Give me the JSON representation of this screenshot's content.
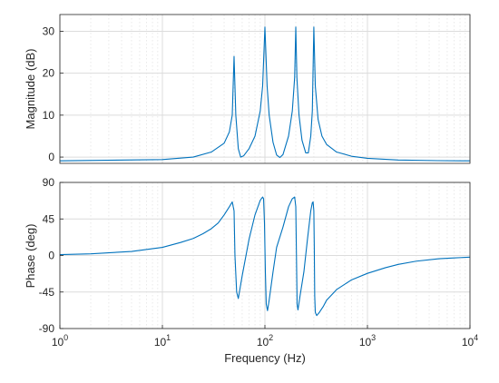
{
  "chart_data": [
    {
      "type": "line",
      "ylabel": "Magnitude (dB)",
      "xscale": "log",
      "xlim": [
        1,
        10000
      ],
      "ylim": [
        -1.5,
        34
      ],
      "yticks": [
        "0",
        "10",
        "20",
        "30"
      ],
      "ytick_values": [
        0,
        10,
        20,
        30
      ],
      "grid": true,
      "color": "#0072BD",
      "series": [
        {
          "x": [
            1,
            10,
            20,
            30,
            40,
            45,
            48,
            50,
            52,
            55,
            58,
            62,
            70,
            80,
            90,
            95,
            100,
            105,
            110,
            120,
            130,
            140,
            150,
            170,
            185,
            195,
            200,
            205,
            215,
            230,
            250,
            265,
            280,
            290,
            300,
            310,
            330,
            360,
            400,
            500,
            700,
            1000,
            2000,
            5000,
            10000
          ],
          "y": [
            -0.9,
            -0.6,
            0.0,
            1.2,
            3.3,
            6.0,
            10.0,
            24.0,
            10.0,
            2.0,
            0.0,
            0.3,
            2.0,
            5.0,
            11.0,
            17.0,
            31.0,
            17.0,
            10.0,
            3.5,
            0.5,
            -0.1,
            0.6,
            5.0,
            11.0,
            19.0,
            31.0,
            19.0,
            10.0,
            4.0,
            1.0,
            1.0,
            5.0,
            11.0,
            31.0,
            17.0,
            9.0,
            5.0,
            3.0,
            1.2,
            0.2,
            -0.3,
            -0.7,
            -0.85,
            -0.9
          ]
        }
      ]
    },
    {
      "type": "line",
      "xlabel": "Frequency  (Hz)",
      "ylabel": "Phase (deg)",
      "xscale": "log",
      "xlim": [
        1,
        10000
      ],
      "ylim": [
        -90,
        90
      ],
      "xticks": [
        {
          "base": "10",
          "exp": "0"
        },
        {
          "base": "10",
          "exp": "1"
        },
        {
          "base": "10",
          "exp": "2"
        },
        {
          "base": "10",
          "exp": "3"
        },
        {
          "base": "10",
          "exp": "4"
        }
      ],
      "xtick_values": [
        1,
        10,
        100,
        1000,
        10000
      ],
      "yticks": [
        "90",
        "45",
        "0",
        "-45",
        "-90"
      ],
      "ytick_values": [
        90,
        45,
        0,
        -45,
        -90
      ],
      "grid": true,
      "color": "#0072BD",
      "series": [
        {
          "x": [
            1,
            2,
            5,
            10,
            15,
            20,
            25,
            30,
            35,
            40,
            45,
            48,
            50,
            51,
            53,
            55,
            60,
            70,
            80,
            90,
            95,
            97,
            99,
            101,
            103,
            106,
            110,
            120,
            130,
            150,
            170,
            185,
            195,
            200,
            203,
            206,
            210,
            220,
            240,
            260,
            280,
            290,
            295,
            300,
            303,
            306,
            310,
            320,
            340,
            370,
            400,
            500,
            700,
            1000,
            1500,
            2000,
            3000,
            5000,
            7000,
            10000
          ],
          "y": [
            1,
            2,
            5,
            10,
            16,
            21,
            27,
            33,
            40,
            50,
            60,
            66,
            55,
            0,
            -45,
            -53,
            -25,
            20,
            50,
            68,
            72,
            70,
            40,
            -20,
            -60,
            -68,
            -55,
            -20,
            10,
            35,
            60,
            70,
            72,
            60,
            0,
            -60,
            -67,
            -50,
            -20,
            20,
            55,
            65,
            66,
            55,
            10,
            -50,
            -70,
            -74,
            -70,
            -63,
            -55,
            -42,
            -30,
            -22,
            -15,
            -11,
            -7,
            -4,
            -3,
            -2
          ]
        }
      ]
    }
  ]
}
